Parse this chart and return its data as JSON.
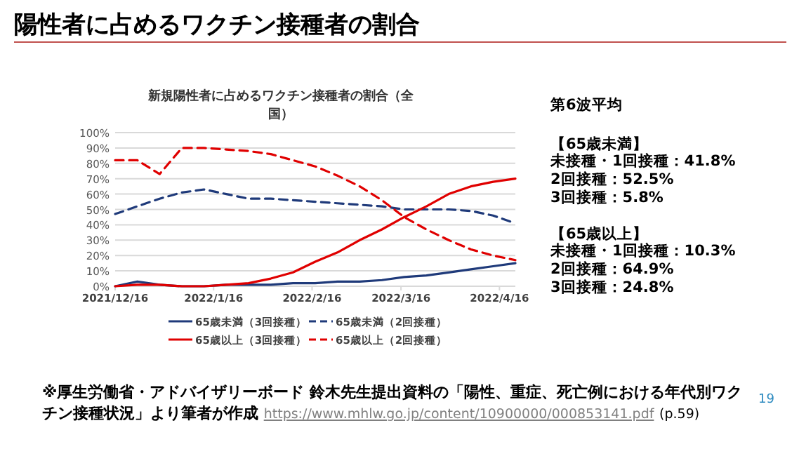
{
  "chart_data": {
    "type": "line",
    "title": "陽性者に占めるワクチン接種者の割合",
    "subtitle": "新規陽性者に占めるワクチン接種者の割合（全国）",
    "x": [
      "2021-12-16",
      "2021-12-23",
      "2021-12-30",
      "2022-01-06",
      "2022-01-13",
      "2022-01-20",
      "2022-01-27",
      "2022-02-03",
      "2022-02-10",
      "2022-02-17",
      "2022-02-24",
      "2022-03-03",
      "2022-03-10",
      "2022-03-17",
      "2022-03-24",
      "2022-03-31",
      "2022-04-07",
      "2022-04-14",
      "2022-04-21"
    ],
    "series": [
      {
        "name": "65歳未満（3回接種）",
        "color": "#1f3a7a",
        "line_style": "solid",
        "values": [
          0,
          3,
          1,
          0,
          0,
          1,
          1,
          1,
          2,
          2,
          3,
          3,
          4,
          6,
          7,
          9,
          11,
          13,
          15
        ]
      },
      {
        "name": "65歳未満（2回接種）",
        "color": "#1f3a7a",
        "line_style": "dashed",
        "values": [
          47,
          52,
          57,
          61,
          63,
          60,
          57,
          57,
          56,
          55,
          54,
          53,
          52,
          50,
          50,
          50,
          49,
          46,
          41
        ]
      },
      {
        "name": "65歳以上（3回接種）",
        "color": "#e00000",
        "line_style": "solid",
        "values": [
          0,
          1,
          1,
          0,
          0,
          1,
          2,
          5,
          9,
          16,
          22,
          30,
          37,
          45,
          52,
          60,
          65,
          68,
          70
        ]
      },
      {
        "name": "65歳以上（2回接種）",
        "color": "#e00000",
        "line_style": "dashed",
        "values": [
          82,
          82,
          73,
          90,
          90,
          89,
          88,
          86,
          82,
          78,
          72,
          65,
          56,
          45,
          37,
          30,
          24,
          20,
          17
        ]
      }
    ],
    "xlim": [
      "2021-12-16",
      "2022-04-21"
    ],
    "xticks": [
      {
        "value": "2021-12-16",
        "label": "2021/12/16"
      },
      {
        "value": "2022-01-16",
        "label": "2022/1/16"
      },
      {
        "value": "2022-02-16",
        "label": "2022/2/16"
      },
      {
        "value": "2022-03-16",
        "label": "2022/3/16"
      },
      {
        "value": "2022-04-16",
        "label": "2022/4/16"
      }
    ],
    "ylim": [
      0,
      100
    ],
    "yticks": [
      {
        "value": 0,
        "label": "0%"
      },
      {
        "value": 10,
        "label": "10%"
      },
      {
        "value": 20,
        "label": "20%"
      },
      {
        "value": 30,
        "label": "30%"
      },
      {
        "value": 40,
        "label": "40%"
      },
      {
        "value": 50,
        "label": "50%"
      },
      {
        "value": 60,
        "label": "60%"
      },
      {
        "value": 70,
        "label": "70%"
      },
      {
        "value": 80,
        "label": "80%"
      },
      {
        "value": 90,
        "label": "90%"
      },
      {
        "value": 100,
        "label": "100%"
      }
    ],
    "grid": "y",
    "legend": "bottom",
    "marker": "none",
    "annotations": [
      "第6波平均",
      "【65歳未満】",
      "未接種・1回接種：41.8%",
      "2回接種：52.5%",
      "3回接種：5.8%",
      "【65歳以上】",
      "未接種・1回接種：10.3%",
      "2回接種：64.9%",
      "3回接種：24.8%",
      "※厚生労働省・アドバイザリーボード 鈴木先生提出資料の「陽性、重症、死亡例における年代別ワクチン接種状況」より筆者が作成",
      "https://www.mhlw.go.jp/content/10900000/000853141.pdf",
      "(p.59)",
      "19"
    ]
  }
}
